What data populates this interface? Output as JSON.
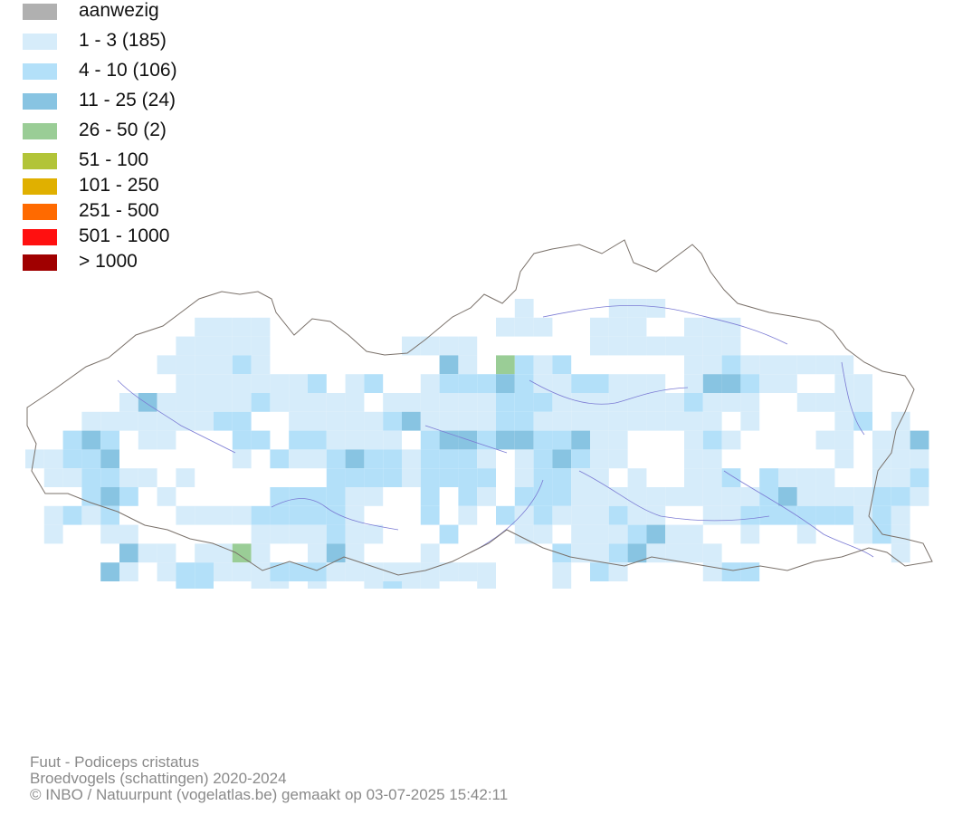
{
  "legend": [
    {
      "label": "aanwezig",
      "color": "#b0b0b0"
    },
    {
      "label": "1 - 3 (185)",
      "color": "#d6ecfa"
    },
    {
      "label": "4 - 10 (106)",
      "color": "#b3e0f9"
    },
    {
      "label": "11 - 25 (24)",
      "color": "#88c4e2"
    },
    {
      "label": "26 - 50 (2)",
      "color": "#9acd96"
    },
    {
      "label": "51 - 100",
      "color": "#b2c438"
    },
    {
      "label": "101 - 250",
      "color": "#e0b000"
    },
    {
      "label": "251 - 500",
      "color": "#ff6a00"
    },
    {
      "label": "501 - 1000",
      "color": "#ff1010"
    },
    {
      "label": "> 1000",
      "color": "#a00000"
    }
  ],
  "map": {
    "border_color": "#7a716a",
    "river_color": "#7b7bd4"
  },
  "caption": {
    "species": "Fuut - Podiceps cristatus",
    "dataset": "Broedvogels (schattingen) 2020-2024",
    "credit": "© INBO / Natuurpunt (vogelatlas.be) gemaakt op 03-07-2025 15:42:11"
  }
}
